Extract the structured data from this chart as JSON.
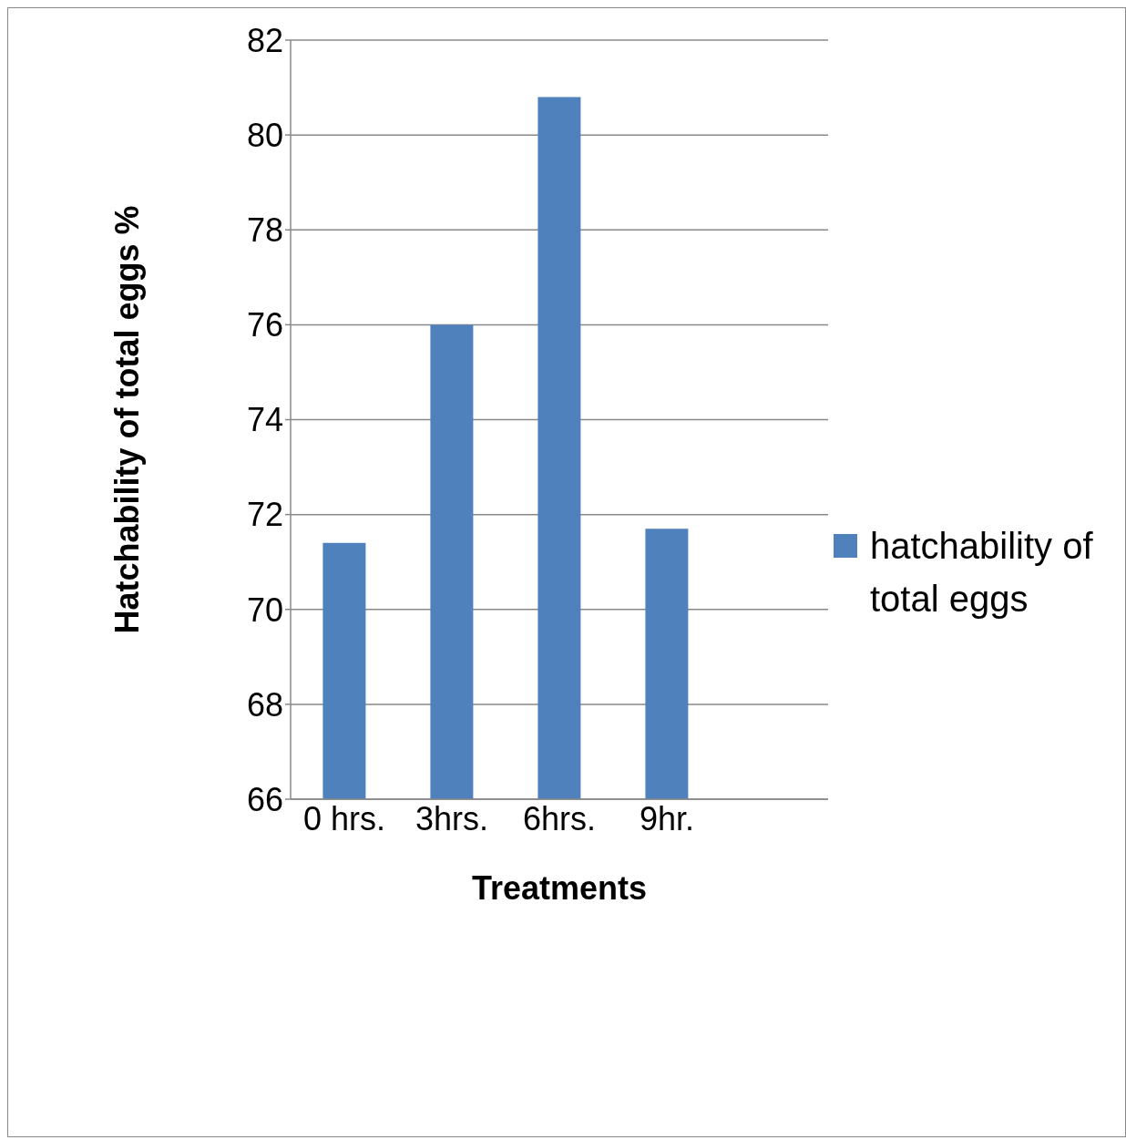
{
  "chart_data": {
    "type": "bar",
    "xlabel": "Treatments",
    "ylabel": "Hatchability  of  total  eggs  %",
    "categories": [
      "0 hrs.",
      "3hrs.",
      "6hrs.",
      "9hr.",
      null
    ],
    "series": [
      {
        "name": "hatchability of total eggs",
        "color": "#4f81bd",
        "values": [
          71.4,
          76.0,
          80.8,
          71.7,
          null
        ]
      }
    ],
    "ylim": [
      66,
      82
    ],
    "yticks": [
      66,
      68,
      70,
      72,
      74,
      76,
      78,
      80,
      82
    ],
    "grid": "y",
    "legend": "right"
  }
}
